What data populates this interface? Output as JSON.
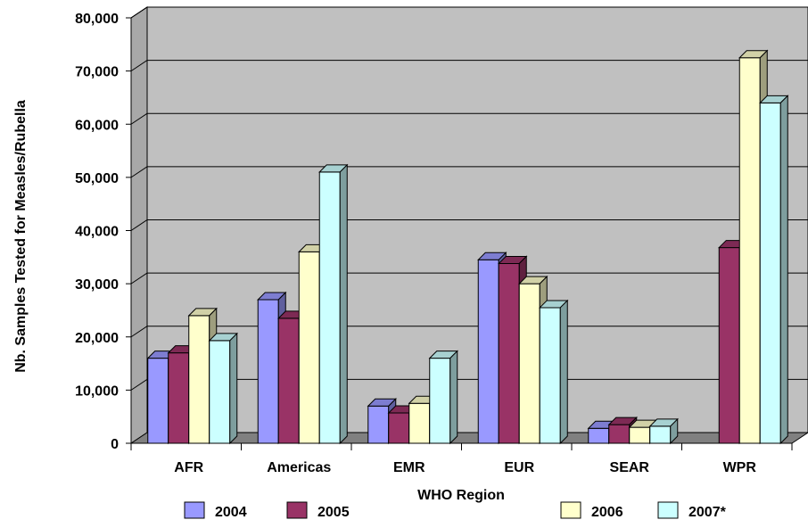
{
  "chart_data": {
    "type": "bar",
    "title": "",
    "xlabel": "WHO Region",
    "ylabel": "Nb. Samples Tested for Measles/Rubella",
    "categories": [
      "AFR",
      "Americas",
      "EMR",
      "EUR",
      "SEAR",
      "WPR"
    ],
    "ylim": [
      0,
      80000
    ],
    "yticks": [
      0,
      10000,
      20000,
      30000,
      40000,
      50000,
      60000,
      70000,
      80000
    ],
    "ytick_labels": [
      "0",
      "10,000",
      "20,000",
      "30,000",
      "40,000",
      "50,000",
      "60,000",
      "70,000",
      "80,000"
    ],
    "grid": true,
    "style": "3d",
    "legend_position": "bottom",
    "series": [
      {
        "name": "2004",
        "values": [
          16000,
          27000,
          7000,
          34500,
          2800,
          null
        ],
        "color": "#9999ff"
      },
      {
        "name": "2005",
        "values": [
          17000,
          23500,
          5700,
          33800,
          3500,
          36800
        ],
        "color": "#993366"
      },
      {
        "name": "2006",
        "values": [
          24000,
          36000,
          7500,
          30000,
          3000,
          72500
        ],
        "color": "#ffffcc"
      },
      {
        "name": "2007*",
        "values": [
          19300,
          51000,
          16000,
          25500,
          3200,
          64000
        ],
        "color": "#ccffff"
      }
    ]
  }
}
